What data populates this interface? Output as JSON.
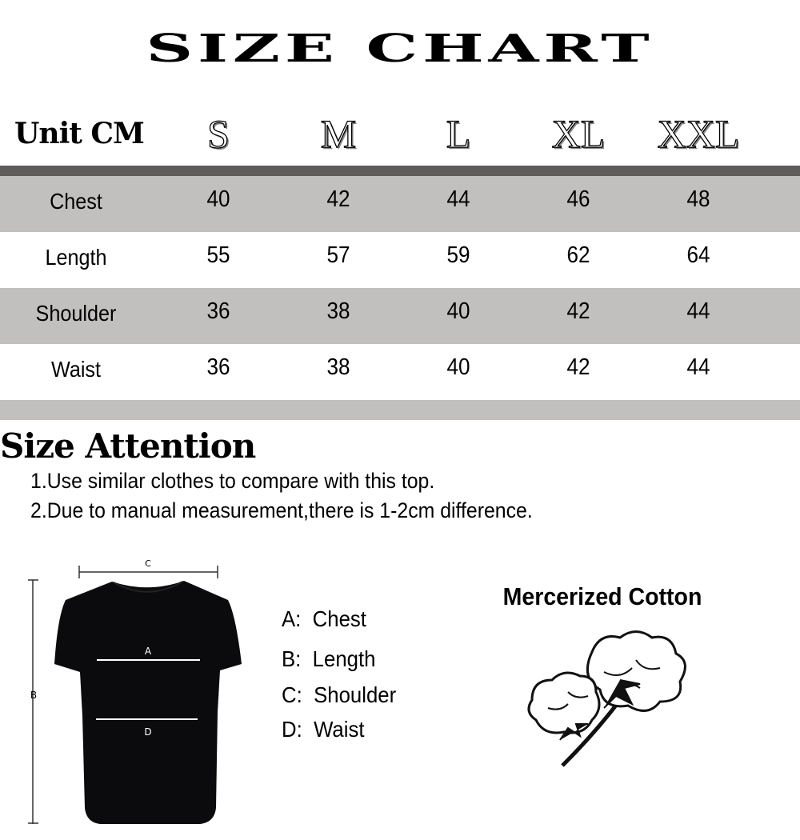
{
  "title": "SIZE CHART",
  "table": {
    "unit_label": "Unit CM",
    "sizes": [
      "S",
      "M",
      "L",
      "XL",
      "XXL"
    ],
    "rows": [
      {
        "label": "Chest",
        "values": [
          "40",
          "42",
          "44",
          "46",
          "48"
        ]
      },
      {
        "label": "Length",
        "values": [
          "55",
          "57",
          "59",
          "62",
          "64"
        ]
      },
      {
        "label": "Shoulder",
        "values": [
          "36",
          "38",
          "40",
          "42",
          "44"
        ]
      },
      {
        "label": "Waist",
        "values": [
          "36",
          "38",
          "40",
          "42",
          "44"
        ]
      }
    ]
  },
  "attention": {
    "heading": "Size Attention",
    "notes": [
      "1.Use similar clothes to compare with this top.",
      "2.Due to manual measurement,there is 1-2cm difference."
    ]
  },
  "diagram": {
    "markers": {
      "a": "A",
      "b": "B",
      "c": "C",
      "d": "D"
    },
    "legend": [
      {
        "key": "A:",
        "label": "Chest"
      },
      {
        "key": "B:",
        "label": "Length"
      },
      {
        "key": "C:",
        "label": "Shoulder"
      },
      {
        "key": "D:",
        "label": "Waist"
      }
    ]
  },
  "material": {
    "title": "Mercerized Cotton",
    "icon": "cotton-flower-icon"
  },
  "colors": {
    "header_bar": "#5f5c5b",
    "row_gray": "#c2bfbf",
    "row_white": "#ffffff"
  }
}
